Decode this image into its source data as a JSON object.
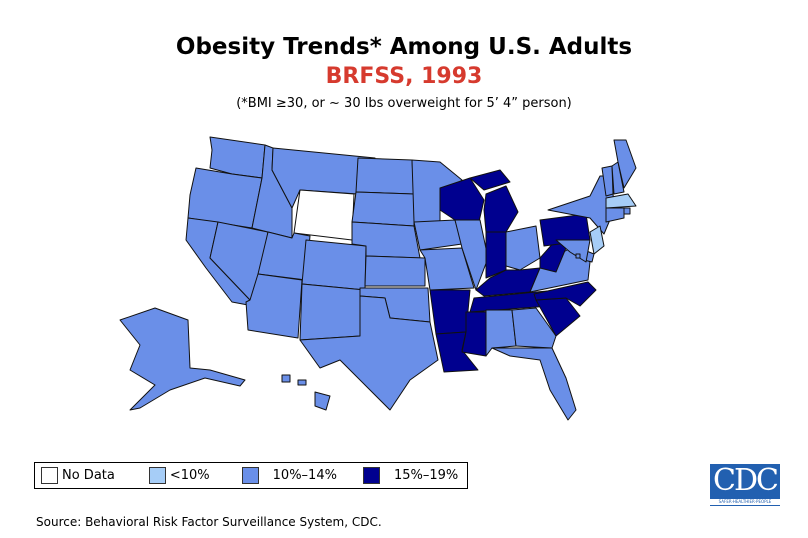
{
  "title": "Obesity Trends* Among U.S. Adults",
  "subtitle": "BRFSS, 1993",
  "note": "(*BMI ≥30, or ~ 30 lbs overweight for 5’ 4” person)",
  "legend": [
    {
      "label": "No Data",
      "color": "#ffffff"
    },
    {
      "label": "<10%",
      "color": "#a6cdf7"
    },
    {
      "label": "10%–14%",
      "color": "#6a8fe8"
    },
    {
      "label": "15%–19%",
      "color": "#00008f"
    }
  ],
  "source": "Source: Behavioral Risk Factor Surveillance System, CDC.",
  "logo": {
    "text": "CDC",
    "tagline": "SAFER·HEALTHIER·PEOPLE"
  },
  "chart_data": {
    "type": "choropleth",
    "title": "Obesity Trends* Among U.S. Adults",
    "subtitle": "BRFSS, 1993",
    "categories": [
      "No Data",
      "<10%",
      "10%-14%",
      "15%-19%"
    ],
    "states": {
      "WA": "10%-14%",
      "OR": "10%-14%",
      "CA": "10%-14%",
      "NV": "10%-14%",
      "ID": "10%-14%",
      "MT": "10%-14%",
      "WY": "No Data",
      "UT": "10%-14%",
      "AZ": "10%-14%",
      "CO": "10%-14%",
      "NM": "10%-14%",
      "ND": "10%-14%",
      "SD": "10%-14%",
      "NE": "10%-14%",
      "KS": "10%-14%",
      "OK": "10%-14%",
      "TX": "10%-14%",
      "MN": "10%-14%",
      "IA": "10%-14%",
      "MO": "10%-14%",
      "AR": "15%-19%",
      "LA": "15%-19%",
      "WI": "15%-19%",
      "IL": "10%-14%",
      "MI": "15%-19%",
      "IN": "15%-19%",
      "OH": "10%-14%",
      "KY": "15%-19%",
      "TN": "15%-19%",
      "MS": "15%-19%",
      "AL": "10%-14%",
      "GA": "10%-14%",
      "FL": "10%-14%",
      "SC": "15%-19%",
      "NC": "15%-19%",
      "VA": "10%-14%",
      "WV": "15%-19%",
      "PA": "15%-19%",
      "NY": "10%-14%",
      "VT": "10%-14%",
      "NH": "10%-14%",
      "ME": "10%-14%",
      "MA": "<10%",
      "RI": "10%-14%",
      "CT": "10%-14%",
      "NJ": "<10%",
      "DE": "10%-14%",
      "MD": "10%-14%",
      "DC": "10%-14%",
      "AK": "10%-14%",
      "HI": "10%-14%"
    }
  }
}
